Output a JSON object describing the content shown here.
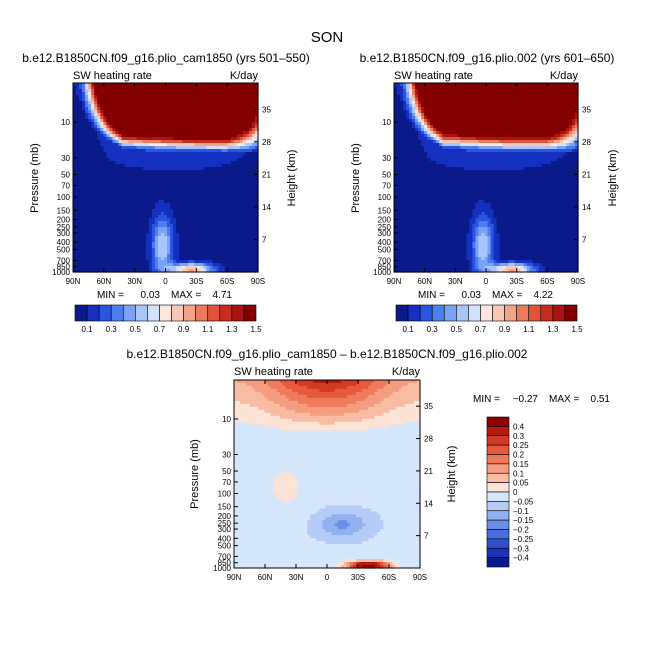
{
  "page_title": "SON",
  "chart_data": [
    {
      "type": "heatmap",
      "title": "b.e12.B1850CN.f09_g16.plio_cam1850 (yrs 501–550)",
      "left_string": "SW heating rate",
      "right_string": "K/day",
      "xlabel": "",
      "ylabel": "Pressure (mb)",
      "y2label": "Height (km)",
      "x_ticks": [
        "90N",
        "60N",
        "30N",
        "0",
        "30S",
        "60S",
        "90S"
      ],
      "y_ticks": [
        "10",
        "30",
        "50",
        "70",
        "100",
        "150",
        "200",
        "250",
        "300",
        "400",
        "500",
        "700",
        "850",
        "1000"
      ],
      "y2_ticks": [
        "35",
        "28",
        "21",
        "14",
        "7"
      ],
      "xlim": [
        90,
        -90
      ],
      "ylim_mb": [
        1000,
        3
      ],
      "stats": {
        "min_label": "MIN =",
        "min": "0.03",
        "max_label": "MAX =",
        "max": "4.71"
      },
      "colorbar": {
        "orientation": "horizontal",
        "levels": [
          "0.1",
          "0.3",
          "0.5",
          "0.7",
          "0.9",
          "1.1",
          "1.3",
          "1.5"
        ],
        "colors": [
          "#0a1a8a",
          "#1530c0",
          "#2a55e0",
          "#4d7ef0",
          "#7aa3f5",
          "#a8c6fa",
          "#d2e2fc",
          "#fbe7df",
          "#f8c8b4",
          "#f3a387",
          "#ec7a5c",
          "#e0523a",
          "#c92b1e",
          "#a81410",
          "#840000"
        ]
      },
      "field": {
        "peak_value": 4.71,
        "polar_min": 0.03
      }
    },
    {
      "type": "heatmap",
      "title": "b.e12.B1850CN.f09_g16.plio.002 (yrs 601–650)",
      "left_string": "SW heating rate",
      "right_string": "K/day",
      "xlabel": "",
      "ylabel": "Pressure (mb)",
      "y2label": "Height (km)",
      "x_ticks": [
        "90N",
        "60N",
        "30N",
        "0",
        "30S",
        "60S",
        "90S"
      ],
      "y_ticks": [
        "10",
        "30",
        "50",
        "70",
        "100",
        "150",
        "200",
        "250",
        "300",
        "400",
        "500",
        "700",
        "850",
        "1000"
      ],
      "y2_ticks": [
        "35",
        "28",
        "21",
        "14",
        "7"
      ],
      "xlim": [
        90,
        -90
      ],
      "ylim_mb": [
        1000,
        3
      ],
      "stats": {
        "min_label": "MIN =",
        "min": "0.03",
        "max_label": "MAX =",
        "max": "4.22"
      },
      "colorbar": {
        "orientation": "horizontal",
        "levels": [
          "0.1",
          "0.3",
          "0.5",
          "0.7",
          "0.9",
          "1.1",
          "1.3",
          "1.5"
        ],
        "colors": [
          "#0a1a8a",
          "#1530c0",
          "#2a55e0",
          "#4d7ef0",
          "#7aa3f5",
          "#a8c6fa",
          "#d2e2fc",
          "#fbe7df",
          "#f8c8b4",
          "#f3a387",
          "#ec7a5c",
          "#e0523a",
          "#c92b1e",
          "#a81410",
          "#840000"
        ]
      },
      "field": {
        "peak_value": 4.22,
        "polar_min": 0.03
      }
    },
    {
      "type": "heatmap",
      "title": "b.e12.B1850CN.f09_g16.plio_cam1850 – b.e12.B1850CN.f09_g16.plio.002",
      "left_string": "SW heating rate",
      "right_string": "K/day",
      "xlabel": "",
      "ylabel": "Pressure (mb)",
      "y2label": "Height (km)",
      "x_ticks": [
        "90N",
        "60N",
        "30N",
        "0",
        "30S",
        "60S",
        "90S"
      ],
      "y_ticks": [
        "10",
        "30",
        "50",
        "70",
        "100",
        "150",
        "200",
        "250",
        "300",
        "400",
        "500",
        "700",
        "850",
        "1000"
      ],
      "y2_ticks": [
        "35",
        "28",
        "21",
        "14",
        "7"
      ],
      "xlim": [
        90,
        -90
      ],
      "ylim_mb": [
        1000,
        3
      ],
      "stats": {
        "min_label": "MIN =",
        "min": "−0.27",
        "max_label": "MAX =",
        "max": "0.51"
      },
      "colorbar": {
        "orientation": "vertical",
        "levels": [
          "0.4",
          "0.3",
          "0.25",
          "0.2",
          "0.15",
          "0.1",
          "0.05",
          "0",
          "−0.05",
          "−0.1",
          "−0.15",
          "−0.2",
          "−0.25",
          "−0.3",
          "−0.4"
        ],
        "colors": [
          "#8b0000",
          "#b3190f",
          "#d23a24",
          "#e8593c",
          "#f07a5c",
          "#f59c80",
          "#f8bca4",
          "#fde3d5",
          "#d6e6fb",
          "#b5cdf6",
          "#90b0f0",
          "#6a8fe8",
          "#4a6fdc",
          "#2f4fcc",
          "#1a33b4",
          "#0a1a8a"
        ]
      },
      "field": {
        "max": 0.51,
        "min": -0.27
      }
    }
  ]
}
